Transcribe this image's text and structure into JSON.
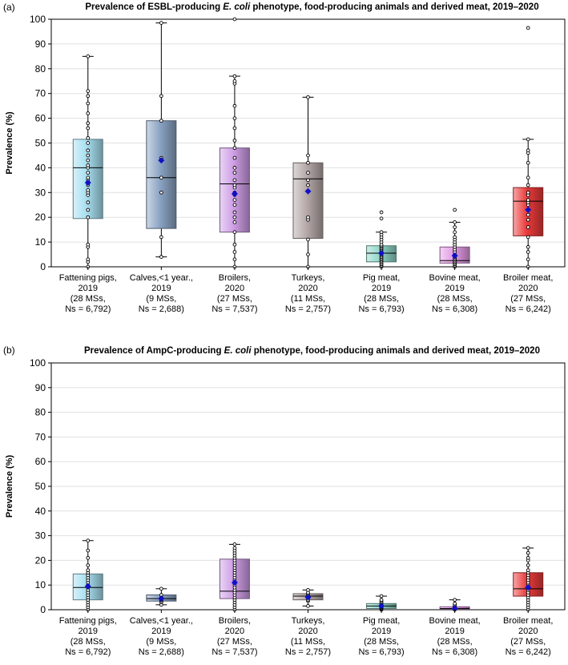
{
  "categories": [
    {
      "name": "Fattening pigs,",
      "year": "2019",
      "ms": "(28 MSs,",
      "ns": "Ns = 6,792)"
    },
    {
      "name": "Calves,<1 year.,",
      "year": "2019",
      "ms": "(9 MSs,",
      "ns": "Ns = 2,688)"
    },
    {
      "name": "Broilers,",
      "year": "2020",
      "ms": "(27 MSs,",
      "ns": "Ns = 7,537)"
    },
    {
      "name": "Turkeys,",
      "year": "2020",
      "ms": "(11 MSs,",
      "ns": "Ns = 2,757)"
    },
    {
      "name": "Pig meat,",
      "year": "2019",
      "ms": "(28 MSs,",
      "ns": "Ns = 6,793)"
    },
    {
      "name": "Bovine meat,",
      "year": "2019",
      "ms": "(28 MSs,",
      "ns": "Ns = 6,308)"
    },
    {
      "name": "Broiler meat,",
      "year": "2020",
      "ms": "(27 MSs,",
      "ns": "Ns = 6,242)"
    }
  ],
  "colors": {
    "fattening_pigs": "#a7dff0",
    "calves": "#8ba4c4",
    "broilers": "#cf9fe6",
    "turkeys": "#b5a8a8",
    "pig_meat": "#8fd6c8",
    "bovine_meat": "#e39ce6",
    "broiler_meat": "#ea3a3a",
    "mean_marker": "#1010c8",
    "grid": "#e0e0e0"
  },
  "chart_data": [
    {
      "type": "box",
      "panel_label": "(a)",
      "title_prefix": "Prevalence of ESBL-producing ",
      "title_italic": "E. coli",
      "title_suffix": " phenotype, food-producing animals and derived meat, 2019–2020",
      "ylabel": "Prevalence (%)",
      "ylim": [
        0,
        100
      ],
      "yticks": [
        0,
        10,
        20,
        30,
        40,
        50,
        60,
        70,
        80,
        90,
        100
      ],
      "series": [
        {
          "name": "Fattening pigs, 2019",
          "min": 0,
          "q1": 19.5,
          "median": 40,
          "q3": 51.5,
          "max": 85,
          "mean": 34,
          "points": [
            0,
            2,
            3,
            8,
            9,
            20,
            23,
            26,
            29,
            30,
            31,
            33,
            35,
            36,
            38,
            40,
            41,
            43,
            45,
            47,
            50,
            52,
            56,
            58,
            62,
            66,
            69,
            71,
            85
          ]
        },
        {
          "name": "Calves, <1 year, 2019",
          "min": 4,
          "q1": 15.5,
          "median": 36,
          "q3": 59,
          "max": 98.5,
          "mean": 43,
          "points": [
            4,
            12,
            30,
            36,
            44,
            59,
            69,
            98.5
          ]
        },
        {
          "name": "Broilers, 2020",
          "min": 0,
          "q1": 14,
          "median": 33.5,
          "q3": 48,
          "max": 77,
          "mean": 29.5,
          "points": [
            0,
            3,
            6,
            9,
            14,
            18,
            20,
            22,
            25,
            27,
            29,
            30,
            32,
            33,
            35,
            38,
            40,
            44,
            48,
            51,
            56,
            60,
            65,
            74,
            75,
            77,
            100
          ]
        },
        {
          "name": "Turkeys, 2020",
          "min": 0,
          "q1": 11.5,
          "median": 35.5,
          "q3": 42,
          "max": 68.5,
          "mean": 30.5,
          "points": [
            0,
            5,
            11,
            19,
            20,
            33,
            35,
            38,
            42,
            45,
            68.5
          ]
        },
        {
          "name": "Pig meat, 2019",
          "min": 0,
          "q1": 2,
          "median": 5.5,
          "q3": 8.5,
          "max": 14,
          "mean": 5.5,
          "points": [
            0,
            0.5,
            1,
            1.5,
            2,
            2.5,
            3,
            3.5,
            4,
            4.5,
            5,
            5.5,
            6,
            6.5,
            7,
            7.5,
            8,
            8.5,
            9,
            10,
            11,
            12,
            13,
            14,
            19.5,
            22
          ]
        },
        {
          "name": "Bovine meat, 2019",
          "min": 0,
          "q1": 1.5,
          "median": 2.5,
          "q3": 8,
          "max": 18,
          "mean": 4.5,
          "points": [
            0,
            0.5,
            1,
            1.5,
            2,
            2.5,
            3,
            3.5,
            4,
            5,
            6,
            7,
            8,
            9,
            10,
            11,
            12,
            14,
            16,
            18,
            23
          ]
        },
        {
          "name": "Broiler meat, 2020",
          "min": 0,
          "q1": 12.5,
          "median": 26.5,
          "q3": 32,
          "max": 51.5,
          "mean": 23,
          "points": [
            0,
            3,
            6,
            8,
            12,
            16,
            19,
            21,
            23,
            25,
            26,
            27,
            29,
            30,
            33,
            36,
            42,
            46,
            47,
            51.5,
            96.5
          ]
        }
      ]
    },
    {
      "type": "box",
      "panel_label": "(b)",
      "title_prefix": "Prevalence of AmpC-producing ",
      "title_italic": "E. coli",
      "title_suffix": " phenotype, food-producing animals and derived meat, 2019–2020",
      "ylabel": "Prevalence (%)",
      "ylim": [
        0,
        100
      ],
      "yticks": [
        0,
        10,
        20,
        30,
        40,
        50,
        60,
        70,
        80,
        90,
        100
      ],
      "series": [
        {
          "name": "Fattening pigs, 2019",
          "min": 0,
          "q1": 4,
          "median": 9,
          "q3": 14.5,
          "max": 28,
          "mean": 9.5,
          "points": [
            0,
            1,
            2,
            3,
            4,
            5,
            6,
            7,
            8,
            9,
            10,
            11,
            12,
            13,
            14,
            15,
            16,
            18,
            21,
            24,
            28
          ]
        },
        {
          "name": "Calves, <1 year, 2019",
          "min": 2,
          "q1": 3.5,
          "median": 4.5,
          "q3": 6,
          "max": 8.5,
          "mean": 4.5,
          "points": [
            2,
            3,
            3.5,
            4,
            4.5,
            5,
            6,
            8.5
          ]
        },
        {
          "name": "Broilers, 2020",
          "min": 0,
          "q1": 4.5,
          "median": 7.5,
          "q3": 20.5,
          "max": 26.5,
          "mean": 11,
          "points": [
            0,
            1,
            2,
            3,
            4,
            5,
            6,
            7,
            8,
            9,
            10,
            11,
            12,
            13,
            14,
            15,
            16,
            17,
            18,
            19,
            20,
            21,
            22,
            23,
            24,
            25,
            26.5
          ]
        },
        {
          "name": "Turkeys, 2020",
          "min": 1.5,
          "q1": 4,
          "median": 5.5,
          "q3": 6.5,
          "max": 8,
          "mean": 5,
          "points": [
            1.5,
            3.5,
            4,
            5,
            5.5,
            6,
            6.5,
            7,
            8
          ]
        },
        {
          "name": "Pig meat, 2019",
          "min": 0,
          "q1": 0.5,
          "median": 1.5,
          "q3": 2.5,
          "max": 5.5,
          "mean": 1.5,
          "points": [
            0,
            0.2,
            0.5,
            0.8,
            1,
            1.2,
            1.5,
            1.8,
            2,
            2.5,
            3,
            3.5,
            4,
            5.5
          ]
        },
        {
          "name": "Bovine meat, 2019",
          "min": 0,
          "q1": 0.2,
          "median": 0.5,
          "q3": 1.2,
          "max": 4,
          "mean": 0.5,
          "points": [
            0,
            0.2,
            0.4,
            0.6,
            0.8,
            1,
            1.2,
            1.5,
            2,
            2.5,
            4
          ]
        },
        {
          "name": "Broiler meat, 2020",
          "min": 0,
          "q1": 5.5,
          "median": 8.5,
          "q3": 15,
          "max": 25,
          "mean": 9,
          "points": [
            0,
            1,
            2,
            3,
            4,
            5,
            6,
            7,
            8,
            9,
            10,
            11,
            12,
            13,
            14,
            15,
            16,
            18,
            20,
            21,
            23,
            25
          ]
        }
      ]
    }
  ]
}
